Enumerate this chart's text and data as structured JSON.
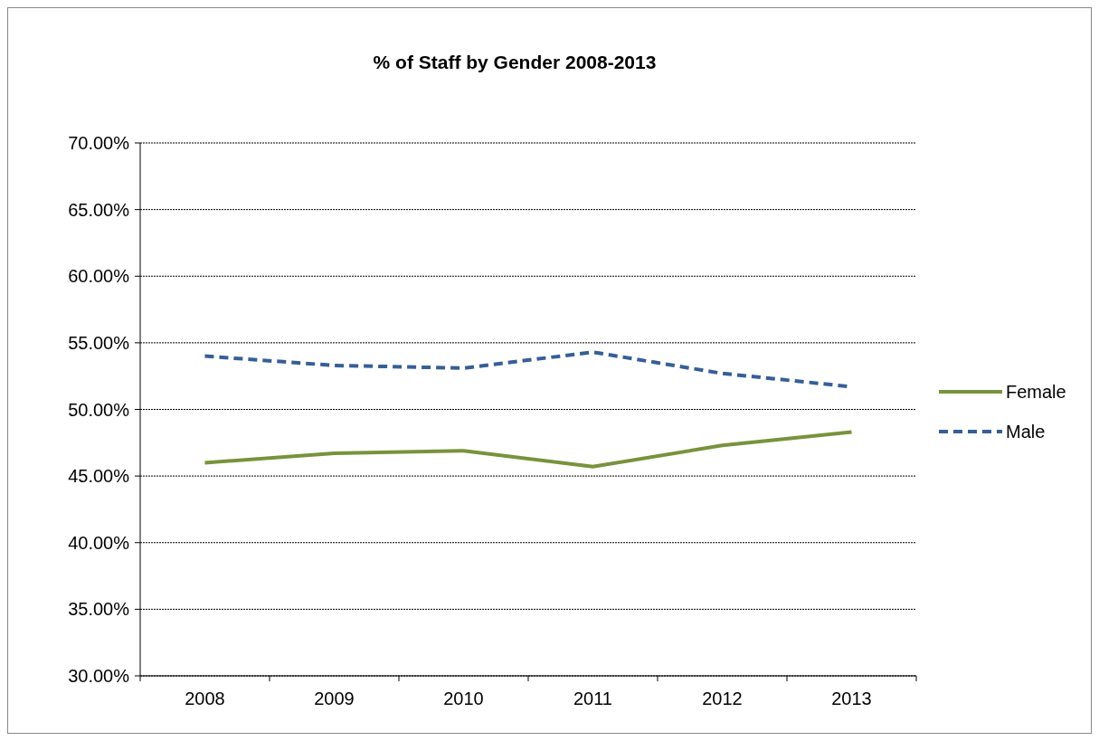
{
  "chart_data": {
    "type": "line",
    "title": "% of Staff by Gender 2008-2013",
    "categories": [
      "2008",
      "2009",
      "2010",
      "2011",
      "2012",
      "2013"
    ],
    "series": [
      {
        "name": "Female",
        "color": "#77933c",
        "values": [
          46.0,
          46.7,
          46.9,
          45.7,
          47.3,
          48.3
        ],
        "line_style": "solid"
      },
      {
        "name": "Male",
        "color": "#365f96",
        "values": [
          54.0,
          53.3,
          53.1,
          54.3,
          52.7,
          51.7
        ],
        "line_style": "dashed"
      }
    ],
    "ylim": [
      30,
      70
    ],
    "yticks": [
      {
        "value": 30,
        "label": "30.00%"
      },
      {
        "value": 35,
        "label": "35.00%"
      },
      {
        "value": 40,
        "label": "40.00%"
      },
      {
        "value": 45,
        "label": "45.00%"
      },
      {
        "value": 50,
        "label": "50.00%"
      },
      {
        "value": 55,
        "label": "55.00%"
      },
      {
        "value": 60,
        "label": "60.00%"
      },
      {
        "value": 65,
        "label": "65.00%"
      },
      {
        "value": 70,
        "label": "70.00%"
      }
    ],
    "grid": "y",
    "legend": "right",
    "marker": "none"
  }
}
